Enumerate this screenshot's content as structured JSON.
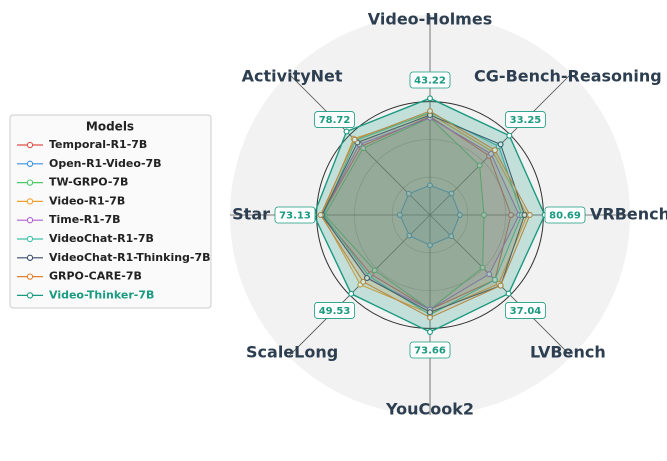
{
  "chart_data": {
    "type": "radar",
    "axes": [
      "Video-Holmes",
      "CG-Bench-Reasoning",
      "VRBench",
      "LVBench",
      "YouCook2",
      "ScaleLong",
      "Star",
      "ActivityNet"
    ],
    "rlims": [
      [
        0,
        50
      ],
      [
        0,
        40
      ],
      [
        0,
        95
      ],
      [
        0,
        45
      ],
      [
        0,
        85
      ],
      [
        0,
        60
      ],
      [
        0,
        85
      ],
      [
        0,
        90
      ]
    ],
    "legend_title": "Models",
    "legend": "left",
    "series": [
      {
        "name": "Temporal-R1-7B",
        "color": "#e0524a",
        "values": [
          36.5,
          24.8,
          57.0,
          30.6,
          59.5,
          37.2,
          68.0,
          64.8
        ]
      },
      {
        "name": "Open-R1-Video-7B",
        "color": "#3a8fe0",
        "values": [
          11.0,
          9.0,
          21.0,
          10.0,
          19.0,
          13.0,
          19.0,
          20.0
        ]
      },
      {
        "name": "TW-GRPO-7B",
        "color": "#4cc76a",
        "values": [
          36.0,
          20.8,
          38.0,
          24.8,
          59.5,
          34.8,
          66.3,
          63.0
        ]
      },
      {
        "name": "Video-R1-7B",
        "color": "#f0a030",
        "values": [
          37.5,
          26.4,
          68.4,
          32.4,
          62.1,
          43.8,
          68.0,
          72.0
        ]
      },
      {
        "name": "Time-R1-7B",
        "color": "#b060d0",
        "values": [
          36.0,
          25.6,
          62.7,
          27.9,
          59.5,
          39.6,
          68.0,
          66.6
        ]
      },
      {
        "name": "VideoChat-R1-7B",
        "color": "#40c0a8",
        "values": [
          38.0,
          28.8,
          64.6,
          30.6,
          62.9,
          38.4,
          67.2,
          70.2
        ]
      },
      {
        "name": "VideoChat-R1-Thinking-7B",
        "color": "#3a4a6a",
        "values": [
          37.0,
          29.6,
          66.5,
          33.3,
          61.2,
          39.6,
          68.0,
          68.4
        ]
      },
      {
        "name": "GRPO-CARE-7B",
        "color": "#e08030",
        "values": [
          38.5,
          27.2,
          70.3,
          33.3,
          64.6,
          42.0,
          68.9,
          71.1
        ]
      },
      {
        "name": "Video-Thinker-7B",
        "color": "#1a9a80",
        "values": [
          43.22,
          33.25,
          80.69,
          37.04,
          73.66,
          49.53,
          73.13,
          78.72
        ]
      }
    ]
  }
}
